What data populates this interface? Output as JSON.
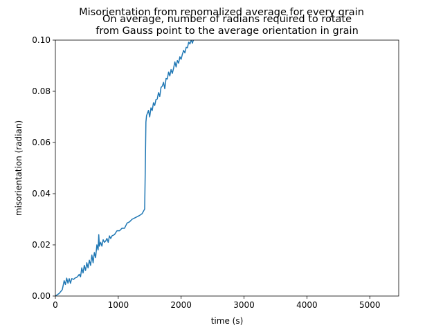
{
  "chart_data": {
    "type": "line",
    "suptitle": "Misorientation from renomalized average for every grain",
    "title_lines": [
      "On average, number of radians required to rotate",
      "from Gauss point to the average orientation in grain"
    ],
    "xlabel": "time (s)",
    "ylabel": "misorientation (radian)",
    "xlim": [
      0,
      5460
    ],
    "ylim": [
      0,
      0.1
    ],
    "x_ticks": [
      0,
      1000,
      2000,
      3000,
      4000,
      5000
    ],
    "x_tick_labels": [
      "0",
      "1000",
      "2000",
      "3000",
      "4000",
      "5000"
    ],
    "y_ticks": [
      0,
      0.02,
      0.04,
      0.06,
      0.08,
      0.1
    ],
    "y_tick_labels": [
      "0.00",
      "0.02",
      "0.04",
      "0.06",
      "0.08",
      "0.10"
    ],
    "grid": false,
    "line_color": "#1f77b4",
    "series": [
      {
        "x": [
          0,
          60,
          110,
          140,
          160,
          180,
          200,
          220,
          240,
          260,
          290,
          310,
          330,
          350,
          380,
          400,
          420,
          440,
          460,
          480,
          500,
          520,
          540,
          560,
          580,
          600,
          620,
          640,
          660,
          680,
          690,
          700,
          720,
          740,
          760,
          780,
          800,
          820,
          840,
          860,
          880,
          900,
          940,
          980,
          1020,
          1060,
          1100,
          1140,
          1180,
          1220,
          1260,
          1300,
          1340,
          1380,
          1420,
          1430,
          1440,
          1450,
          1480,
          1500,
          1520,
          1540,
          1560,
          1580,
          1600,
          1620,
          1640,
          1660,
          1680,
          1700,
          1720,
          1740,
          1760,
          1780,
          1800,
          1820,
          1840,
          1860,
          1880,
          1900,
          1920,
          1940,
          1960,
          1980,
          2000,
          2020,
          2040,
          2060,
          2080,
          2100,
          2120,
          2140,
          2160,
          2180,
          2200,
          2220,
          2240
        ],
        "y": [
          0.0,
          0.001,
          0.0025,
          0.006,
          0.0045,
          0.007,
          0.005,
          0.0068,
          0.005,
          0.0068,
          0.0065,
          0.007,
          0.0072,
          0.0075,
          0.0085,
          0.0075,
          0.011,
          0.009,
          0.012,
          0.01,
          0.013,
          0.011,
          0.014,
          0.012,
          0.016,
          0.013,
          0.017,
          0.015,
          0.02,
          0.018,
          0.024,
          0.0195,
          0.021,
          0.0195,
          0.022,
          0.021,
          0.0215,
          0.0225,
          0.021,
          0.0235,
          0.0225,
          0.0235,
          0.024,
          0.0255,
          0.0255,
          0.0265,
          0.0265,
          0.0285,
          0.029,
          0.03,
          0.0305,
          0.031,
          0.0315,
          0.0322,
          0.034,
          0.05,
          0.068,
          0.0705,
          0.0725,
          0.07,
          0.0735,
          0.0725,
          0.0755,
          0.0745,
          0.0768,
          0.077,
          0.0795,
          0.078,
          0.0815,
          0.082,
          0.0835,
          0.081,
          0.085,
          0.0848,
          0.0875,
          0.086,
          0.0885,
          0.087,
          0.089,
          0.0915,
          0.0895,
          0.092,
          0.091,
          0.0935,
          0.0925,
          0.0945,
          0.096,
          0.095,
          0.0972,
          0.097,
          0.0992,
          0.0985,
          0.1,
          0.0988,
          0.1005,
          0.1015,
          0.103
        ]
      }
    ]
  }
}
